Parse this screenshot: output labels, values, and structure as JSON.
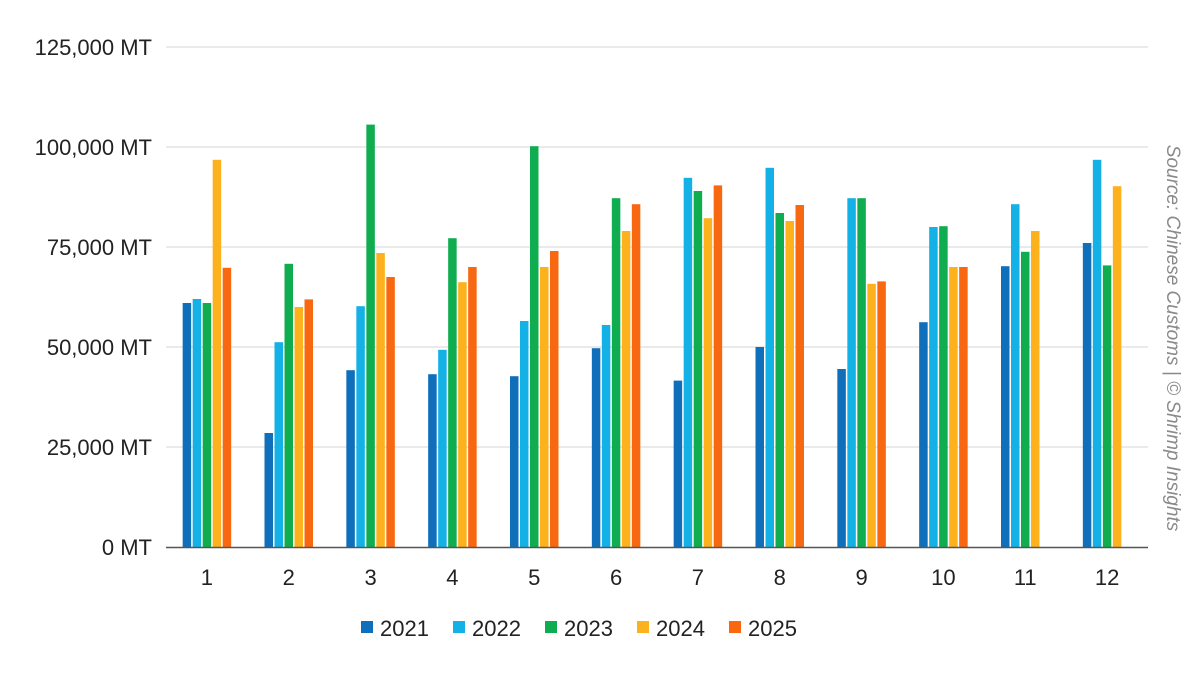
{
  "chart_data": {
    "type": "bar",
    "categories": [
      "1",
      "2",
      "3",
      "4",
      "5",
      "6",
      "7",
      "8",
      "9",
      "10",
      "11",
      "12"
    ],
    "series": [
      {
        "name": "2021",
        "color": "#0f6fba",
        "values": [
          61000,
          28500,
          44200,
          43200,
          42700,
          49700,
          41600,
          50000,
          44500,
          56200,
          70200,
          76000
        ]
      },
      {
        "name": "2022",
        "color": "#14b1e7",
        "values": [
          62000,
          51200,
          60200,
          49300,
          56500,
          55500,
          92300,
          94800,
          87200,
          80000,
          85700,
          96800
        ]
      },
      {
        "name": "2023",
        "color": "#0fad4f",
        "values": [
          61000,
          70800,
          105600,
          77200,
          100200,
          87200,
          89000,
          83500,
          87200,
          80200,
          73800,
          70400
        ]
      },
      {
        "name": "2024",
        "color": "#fdb11c",
        "values": [
          96800,
          60000,
          73500,
          66200,
          70000,
          79000,
          82200,
          81500,
          65800,
          70000,
          79000,
          90200
        ]
      },
      {
        "name": "2025",
        "color": "#f76811",
        "values": [
          69800,
          61900,
          67500,
          70000,
          74000,
          85700,
          90400,
          85500,
          66400,
          70000,
          null,
          null
        ]
      }
    ],
    "y_ticks": [
      "0 MT",
      "25,000 MT",
      "50,000 MT",
      "75,000 MT",
      "100,000 MT",
      "125,000 MT"
    ],
    "y_tick_values": [
      0,
      25000,
      50000,
      75000,
      100000,
      125000
    ],
    "ylim": [
      0,
      125000
    ],
    "grid": true,
    "legend_position": "bottom",
    "xlabel": "",
    "ylabel": ""
  },
  "source": "Source: Chinese Customs | © Shrimp Insights"
}
